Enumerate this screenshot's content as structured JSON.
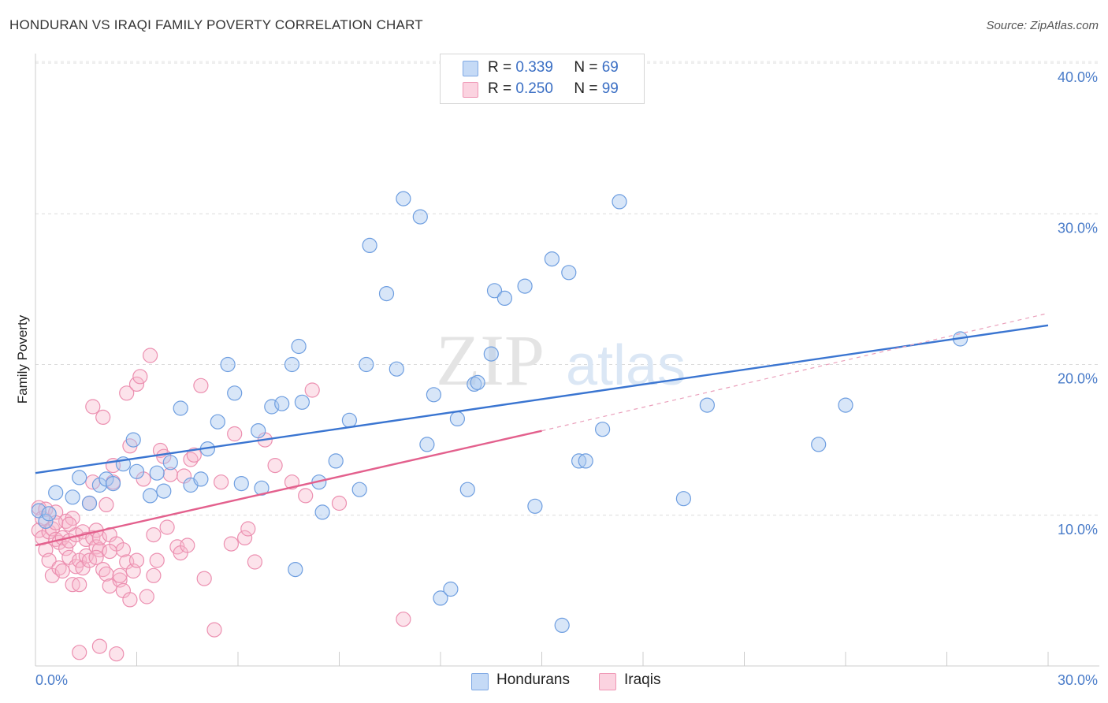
{
  "header": {
    "title": "HONDURAN VS IRAQI FAMILY POVERTY CORRELATION CHART",
    "source": "Source: ZipAtlas.com"
  },
  "watermark": {
    "zip": "ZIP",
    "atlas": "atlas"
  },
  "legend_top": {
    "rows": [
      {
        "r_label": "R =",
        "r_value": "0.339",
        "n_label": "N =",
        "n_value": "69",
        "color": "#a8c8f0"
      },
      {
        "r_label": "R =",
        "r_value": "0.250",
        "n_label": "N =",
        "n_value": "99",
        "color": "#f7b8cc"
      }
    ]
  },
  "legend_bottom": {
    "items": [
      {
        "label": "Hondurans",
        "color": "#a8c8f0"
      },
      {
        "label": "Iraqis",
        "color": "#f7b8cc"
      }
    ]
  },
  "chart_data": {
    "type": "scatter",
    "title": "HONDURAN VS IRAQI FAMILY POVERTY CORRELATION CHART",
    "xlabel": "",
    "ylabel": "Family Poverty",
    "xlim": [
      0,
      30
    ],
    "ylim": [
      0,
      40
    ],
    "x_tick_labels": [
      "0.0%",
      "30.0%"
    ],
    "y_ticks": [
      10,
      20,
      30,
      40
    ],
    "y_tick_labels": [
      "10.0%",
      "20.0%",
      "30.0%",
      "40.0%"
    ],
    "grid": "horizontal dashed",
    "legend_placement": "top-center",
    "colors": {
      "hondurans": "#5b8fd9",
      "iraqis": "#e8739c",
      "hondurans_line": "#3a75d1",
      "iraqis_line": "#e3608d"
    },
    "series": [
      {
        "name": "Hondurans",
        "trend": {
          "x": [
            0,
            30
          ],
          "y": [
            12.8,
            22.6
          ]
        },
        "points": [
          [
            0.1,
            10.3
          ],
          [
            0.3,
            9.6
          ],
          [
            0.6,
            11.5
          ],
          [
            1.1,
            11.2
          ],
          [
            1.3,
            12.5
          ],
          [
            1.6,
            10.8
          ],
          [
            1.9,
            12.0
          ],
          [
            2.1,
            12.4
          ],
          [
            2.3,
            12.1
          ],
          [
            2.6,
            13.4
          ],
          [
            2.9,
            15.0
          ],
          [
            3.0,
            12.9
          ],
          [
            3.4,
            11.3
          ],
          [
            3.6,
            12.8
          ],
          [
            3.8,
            11.6
          ],
          [
            4.0,
            13.5
          ],
          [
            4.3,
            17.1
          ],
          [
            4.6,
            12.0
          ],
          [
            4.9,
            12.4
          ],
          [
            5.1,
            14.4
          ],
          [
            5.4,
            16.2
          ],
          [
            5.7,
            20.0
          ],
          [
            5.9,
            18.1
          ],
          [
            6.1,
            12.1
          ],
          [
            6.6,
            15.6
          ],
          [
            6.7,
            11.8
          ],
          [
            7.0,
            17.2
          ],
          [
            7.3,
            17.4
          ],
          [
            7.6,
            20.0
          ],
          [
            7.7,
            6.4
          ],
          [
            7.8,
            21.2
          ],
          [
            7.9,
            17.5
          ],
          [
            8.4,
            12.2
          ],
          [
            8.5,
            10.2
          ],
          [
            8.9,
            13.6
          ],
          [
            9.3,
            16.3
          ],
          [
            9.6,
            11.7
          ],
          [
            9.8,
            20.0
          ],
          [
            9.9,
            27.9
          ],
          [
            10.4,
            24.7
          ],
          [
            10.7,
            19.7
          ],
          [
            10.9,
            31.0
          ],
          [
            11.4,
            29.8
          ],
          [
            11.6,
            14.7
          ],
          [
            11.8,
            18.0
          ],
          [
            12.0,
            4.5
          ],
          [
            12.3,
            5.1
          ],
          [
            12.5,
            16.4
          ],
          [
            12.8,
            11.7
          ],
          [
            13.0,
            18.7
          ],
          [
            13.1,
            18.8
          ],
          [
            13.5,
            20.7
          ],
          [
            13.6,
            24.9
          ],
          [
            13.9,
            24.4
          ],
          [
            14.5,
            25.2
          ],
          [
            14.8,
            10.6
          ],
          [
            15.3,
            27.0
          ],
          [
            15.6,
            2.7
          ],
          [
            15.8,
            26.1
          ],
          [
            16.1,
            13.6
          ],
          [
            16.3,
            13.6
          ],
          [
            16.8,
            15.7
          ],
          [
            17.3,
            30.8
          ],
          [
            19.2,
            11.1
          ],
          [
            19.9,
            17.3
          ],
          [
            23.2,
            14.7
          ],
          [
            24.0,
            17.3
          ],
          [
            27.4,
            21.7
          ],
          [
            0.4,
            10.1
          ]
        ]
      },
      {
        "name": "Iraqis",
        "trend": {
          "x": [
            0,
            15
          ],
          "y": [
            8.0,
            15.6
          ]
        },
        "trend_extension": {
          "x": [
            15,
            30
          ],
          "y": [
            15.6,
            23.4
          ]
        },
        "points": [
          [
            0.1,
            10.5
          ],
          [
            0.1,
            9.0
          ],
          [
            0.2,
            9.8
          ],
          [
            0.2,
            8.5
          ],
          [
            0.3,
            10.4
          ],
          [
            0.3,
            7.7
          ],
          [
            0.4,
            8.9
          ],
          [
            0.4,
            7.0
          ],
          [
            0.5,
            9.1
          ],
          [
            0.5,
            6.0
          ],
          [
            0.6,
            8.4
          ],
          [
            0.6,
            10.2
          ],
          [
            0.7,
            8.2
          ],
          [
            0.7,
            6.5
          ],
          [
            0.8,
            8.5
          ],
          [
            0.8,
            6.3
          ],
          [
            0.9,
            7.8
          ],
          [
            0.9,
            9.6
          ],
          [
            1.0,
            8.3
          ],
          [
            1.0,
            7.2
          ],
          [
            1.1,
            9.8
          ],
          [
            1.1,
            5.4
          ],
          [
            1.2,
            6.6
          ],
          [
            1.2,
            8.7
          ],
          [
            1.3,
            7.0
          ],
          [
            1.3,
            5.4
          ],
          [
            1.4,
            8.9
          ],
          [
            1.4,
            6.5
          ],
          [
            1.5,
            7.3
          ],
          [
            1.5,
            8.4
          ],
          [
            1.6,
            10.8
          ],
          [
            1.6,
            7.0
          ],
          [
            1.7,
            8.5
          ],
          [
            1.7,
            12.2
          ],
          [
            1.7,
            17.2
          ],
          [
            1.8,
            7.9
          ],
          [
            1.8,
            9.0
          ],
          [
            1.9,
            7.7
          ],
          [
            1.9,
            8.5
          ],
          [
            2.0,
            6.4
          ],
          [
            2.0,
            16.5
          ],
          [
            2.1,
            10.7
          ],
          [
            2.1,
            6.1
          ],
          [
            2.2,
            5.3
          ],
          [
            2.2,
            8.7
          ],
          [
            2.3,
            12.2
          ],
          [
            2.3,
            13.3
          ],
          [
            2.4,
            8.1
          ],
          [
            2.5,
            5.7
          ],
          [
            2.5,
            6.0
          ],
          [
            2.6,
            7.7
          ],
          [
            2.6,
            5.0
          ],
          [
            2.7,
            6.9
          ],
          [
            2.7,
            18.1
          ],
          [
            2.8,
            4.4
          ],
          [
            2.8,
            14.6
          ],
          [
            2.9,
            6.3
          ],
          [
            3.0,
            7.0
          ],
          [
            3.0,
            18.7
          ],
          [
            3.1,
            19.2
          ],
          [
            3.2,
            12.4
          ],
          [
            3.3,
            4.6
          ],
          [
            3.4,
            20.6
          ],
          [
            3.5,
            8.7
          ],
          [
            3.5,
            6.0
          ],
          [
            3.6,
            7.0
          ],
          [
            3.7,
            14.3
          ],
          [
            3.8,
            13.9
          ],
          [
            3.9,
            9.2
          ],
          [
            4.0,
            12.7
          ],
          [
            4.2,
            7.9
          ],
          [
            4.3,
            7.5
          ],
          [
            4.4,
            12.6
          ],
          [
            4.5,
            8.0
          ],
          [
            4.6,
            13.7
          ],
          [
            4.7,
            14.0
          ],
          [
            4.9,
            18.6
          ],
          [
            5.0,
            5.8
          ],
          [
            5.3,
            2.4
          ],
          [
            5.5,
            12.2
          ],
          [
            5.8,
            8.1
          ],
          [
            5.9,
            15.4
          ],
          [
            6.2,
            8.5
          ],
          [
            6.3,
            9.1
          ],
          [
            6.5,
            6.9
          ],
          [
            6.8,
            15.0
          ],
          [
            7.1,
            13.3
          ],
          [
            7.6,
            12.2
          ],
          [
            8.0,
            11.3
          ],
          [
            8.2,
            18.3
          ],
          [
            9.0,
            10.8
          ],
          [
            10.9,
            3.1
          ],
          [
            1.3,
            0.9
          ],
          [
            1.9,
            1.3
          ],
          [
            2.4,
            0.8
          ],
          [
            1.8,
            7.2
          ],
          [
            2.2,
            7.6
          ],
          [
            0.6,
            9.5
          ],
          [
            1.0,
            9.4
          ]
        ]
      }
    ]
  }
}
